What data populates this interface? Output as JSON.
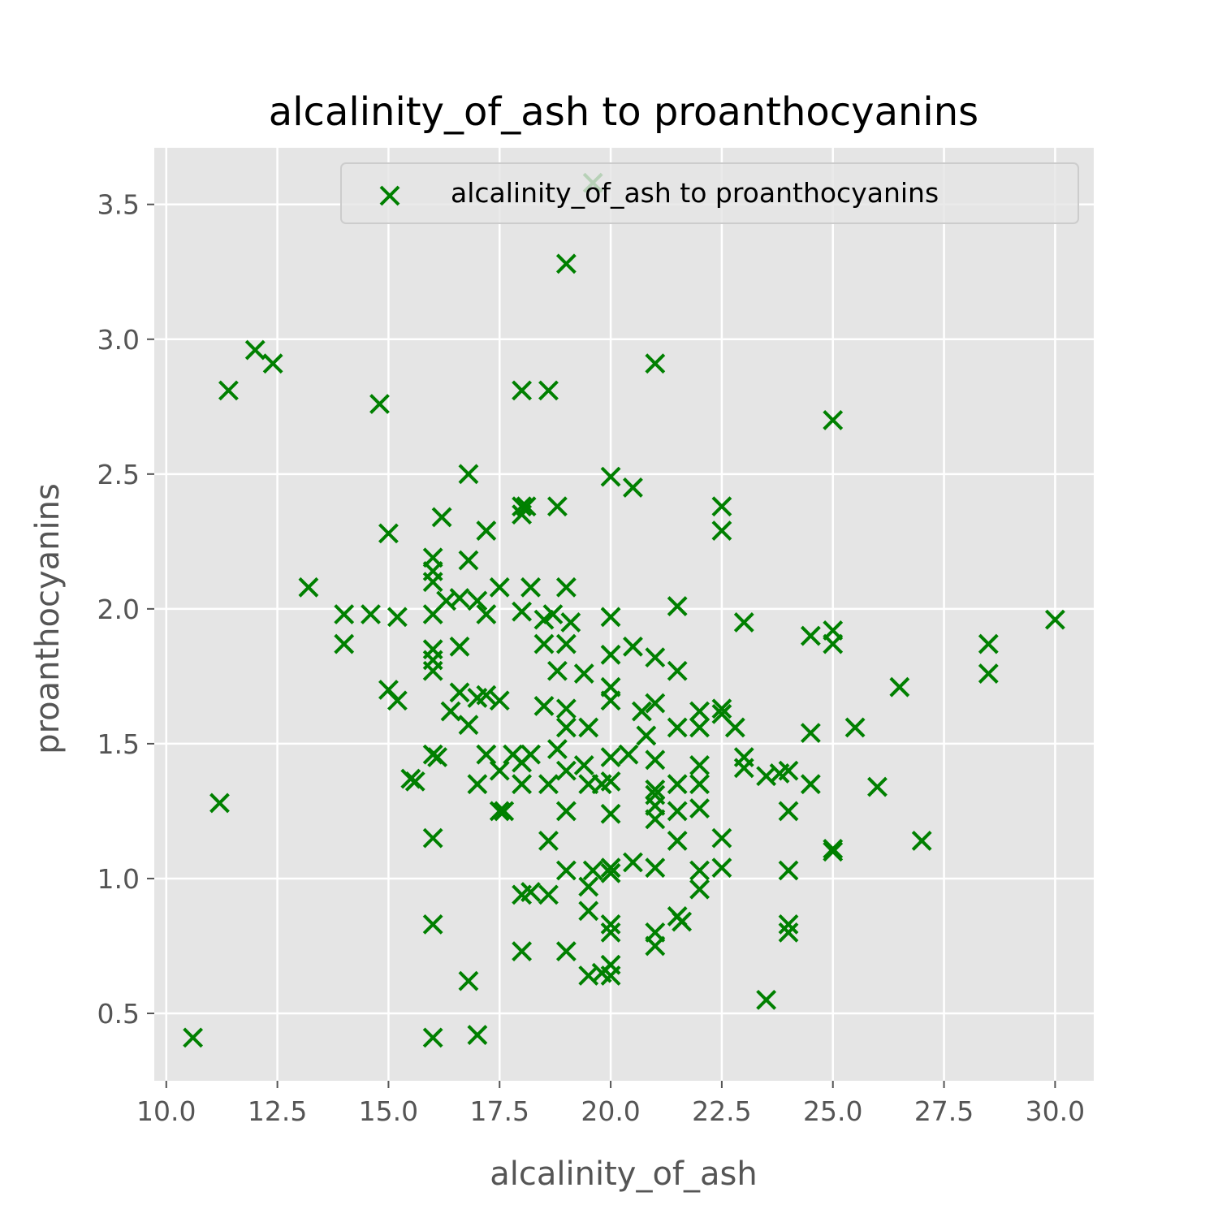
{
  "chart_data": {
    "type": "scatter",
    "title": "alcalinity_of_ash to proanthocyanins",
    "xlabel": "alcalinity_of_ash",
    "ylabel": "proanthocyanins",
    "xlim": [
      9.73,
      30.87
    ],
    "ylim": [
      0.25,
      3.71
    ],
    "xticks": [
      "10.0",
      "12.5",
      "15.0",
      "17.5",
      "20.0",
      "22.5",
      "25.0",
      "27.5",
      "30.0"
    ],
    "yticks": [
      "0.5",
      "1.0",
      "1.5",
      "2.0",
      "2.5",
      "3.0",
      "3.5"
    ],
    "grid": true,
    "legend_position": "top-right",
    "marker": "x",
    "color": "#008000",
    "series": [
      {
        "name": "alcalinity_of_ash to proanthocyanins",
        "points": [
          [
            10.6,
            0.41
          ],
          [
            11.2,
            1.28
          ],
          [
            11.4,
            2.81
          ],
          [
            12.0,
            2.96
          ],
          [
            12.4,
            2.91
          ],
          [
            13.2,
            2.08
          ],
          [
            14.0,
            1.98
          ],
          [
            14.0,
            1.87
          ],
          [
            14.6,
            1.98
          ],
          [
            14.8,
            2.76
          ],
          [
            15.0,
            2.28
          ],
          [
            15.0,
            1.7
          ],
          [
            15.2,
            1.97
          ],
          [
            15.2,
            1.66
          ],
          [
            15.5,
            1.37
          ],
          [
            15.6,
            1.36
          ],
          [
            16.0,
            2.19
          ],
          [
            16.0,
            2.14
          ],
          [
            16.0,
            2.1
          ],
          [
            16.0,
            1.98
          ],
          [
            16.0,
            1.85
          ],
          [
            16.0,
            1.81
          ],
          [
            16.0,
            1.77
          ],
          [
            16.0,
            1.46
          ],
          [
            16.1,
            1.45
          ],
          [
            16.0,
            1.15
          ],
          [
            16.0,
            0.83
          ],
          [
            16.0,
            0.41
          ],
          [
            16.2,
            2.34
          ],
          [
            16.3,
            2.03
          ],
          [
            16.4,
            1.62
          ],
          [
            16.6,
            2.04
          ],
          [
            16.6,
            1.86
          ],
          [
            16.6,
            1.69
          ],
          [
            16.8,
            2.5
          ],
          [
            16.8,
            2.18
          ],
          [
            16.8,
            1.57
          ],
          [
            16.8,
            0.62
          ],
          [
            17.0,
            2.03
          ],
          [
            17.0,
            1.67
          ],
          [
            17.0,
            1.35
          ],
          [
            17.0,
            0.42
          ],
          [
            17.2,
            2.29
          ],
          [
            17.2,
            1.98
          ],
          [
            17.2,
            1.68
          ],
          [
            17.2,
            1.46
          ],
          [
            17.5,
            2.08
          ],
          [
            17.5,
            1.66
          ],
          [
            17.5,
            1.4
          ],
          [
            17.5,
            1.25
          ],
          [
            17.6,
            1.25
          ],
          [
            17.8,
            1.46
          ],
          [
            18.0,
            2.81
          ],
          [
            18.0,
            2.38
          ],
          [
            18.0,
            2.35
          ],
          [
            18.0,
            1.99
          ],
          [
            18.0,
            1.43
          ],
          [
            18.0,
            1.35
          ],
          [
            18.0,
            0.94
          ],
          [
            18.0,
            0.73
          ],
          [
            18.1,
            2.38
          ],
          [
            18.2,
            2.08
          ],
          [
            18.2,
            1.46
          ],
          [
            18.2,
            0.95
          ],
          [
            18.5,
            1.96
          ],
          [
            18.5,
            1.87
          ],
          [
            18.5,
            1.64
          ],
          [
            18.6,
            1.35
          ],
          [
            18.6,
            1.14
          ],
          [
            18.6,
            0.94
          ],
          [
            18.6,
            2.81
          ],
          [
            18.7,
            1.98
          ],
          [
            18.8,
            2.38
          ],
          [
            18.8,
            1.77
          ],
          [
            18.8,
            1.48
          ],
          [
            19.0,
            3.28
          ],
          [
            19.0,
            2.08
          ],
          [
            19.0,
            1.87
          ],
          [
            19.0,
            1.63
          ],
          [
            19.0,
            1.56
          ],
          [
            19.0,
            1.4
          ],
          [
            19.0,
            1.25
          ],
          [
            19.0,
            1.03
          ],
          [
            19.0,
            0.73
          ],
          [
            19.1,
            1.95
          ],
          [
            19.4,
            1.76
          ],
          [
            19.4,
            1.42
          ],
          [
            19.5,
            1.56
          ],
          [
            19.5,
            1.35
          ],
          [
            19.5,
            0.88
          ],
          [
            19.5,
            0.64
          ],
          [
            19.5,
            0.97
          ],
          [
            19.6,
            3.58
          ],
          [
            19.6,
            1.03
          ],
          [
            19.8,
            1.35
          ],
          [
            19.8,
            0.65
          ],
          [
            20.0,
            2.49
          ],
          [
            20.0,
            1.97
          ],
          [
            20.0,
            1.83
          ],
          [
            20.0,
            1.71
          ],
          [
            20.0,
            1.66
          ],
          [
            20.0,
            1.45
          ],
          [
            20.0,
            1.36
          ],
          [
            20.0,
            1.24
          ],
          [
            20.0,
            1.04
          ],
          [
            20.0,
            1.02
          ],
          [
            20.0,
            0.83
          ],
          [
            20.0,
            0.8
          ],
          [
            20.0,
            0.68
          ],
          [
            20.0,
            0.64
          ],
          [
            20.4,
            1.46
          ],
          [
            20.5,
            2.45
          ],
          [
            20.5,
            1.86
          ],
          [
            20.5,
            1.06
          ],
          [
            20.7,
            1.62
          ],
          [
            20.8,
            1.53
          ],
          [
            21.0,
            2.91
          ],
          [
            21.0,
            1.82
          ],
          [
            21.0,
            1.65
          ],
          [
            21.0,
            1.44
          ],
          [
            21.0,
            1.33
          ],
          [
            21.0,
            1.31
          ],
          [
            21.0,
            1.27
          ],
          [
            21.0,
            1.22
          ],
          [
            21.0,
            1.04
          ],
          [
            21.0,
            0.8
          ],
          [
            21.0,
            0.75
          ],
          [
            21.5,
            2.01
          ],
          [
            21.5,
            1.77
          ],
          [
            21.5,
            1.56
          ],
          [
            21.5,
            1.35
          ],
          [
            21.5,
            1.25
          ],
          [
            21.5,
            1.14
          ],
          [
            21.5,
            0.86
          ],
          [
            21.6,
            0.84
          ],
          [
            22.0,
            1.62
          ],
          [
            22.0,
            1.56
          ],
          [
            22.0,
            1.42
          ],
          [
            22.0,
            1.35
          ],
          [
            22.0,
            1.26
          ],
          [
            22.0,
            1.03
          ],
          [
            22.0,
            0.96
          ],
          [
            22.5,
            2.38
          ],
          [
            22.5,
            2.29
          ],
          [
            22.5,
            1.63
          ],
          [
            22.5,
            1.61
          ],
          [
            22.5,
            1.15
          ],
          [
            22.5,
            1.04
          ],
          [
            22.8,
            1.56
          ],
          [
            23.0,
            1.95
          ],
          [
            23.0,
            1.45
          ],
          [
            23.0,
            1.41
          ],
          [
            23.5,
            1.38
          ],
          [
            23.5,
            0.55
          ],
          [
            23.8,
            1.39
          ],
          [
            24.0,
            1.4
          ],
          [
            24.0,
            1.25
          ],
          [
            24.0,
            1.03
          ],
          [
            24.0,
            0.83
          ],
          [
            24.0,
            0.8
          ],
          [
            24.5,
            1.9
          ],
          [
            24.5,
            1.54
          ],
          [
            24.5,
            1.35
          ],
          [
            25.0,
            2.7
          ],
          [
            25.0,
            1.92
          ],
          [
            25.0,
            1.87
          ],
          [
            25.0,
            1.11
          ],
          [
            25.0,
            1.1
          ],
          [
            25.5,
            1.56
          ],
          [
            26.0,
            1.34
          ],
          [
            26.5,
            1.71
          ],
          [
            27.0,
            1.14
          ],
          [
            28.5,
            1.87
          ],
          [
            28.5,
            1.76
          ],
          [
            30.0,
            1.96
          ]
        ]
      }
    ]
  }
}
